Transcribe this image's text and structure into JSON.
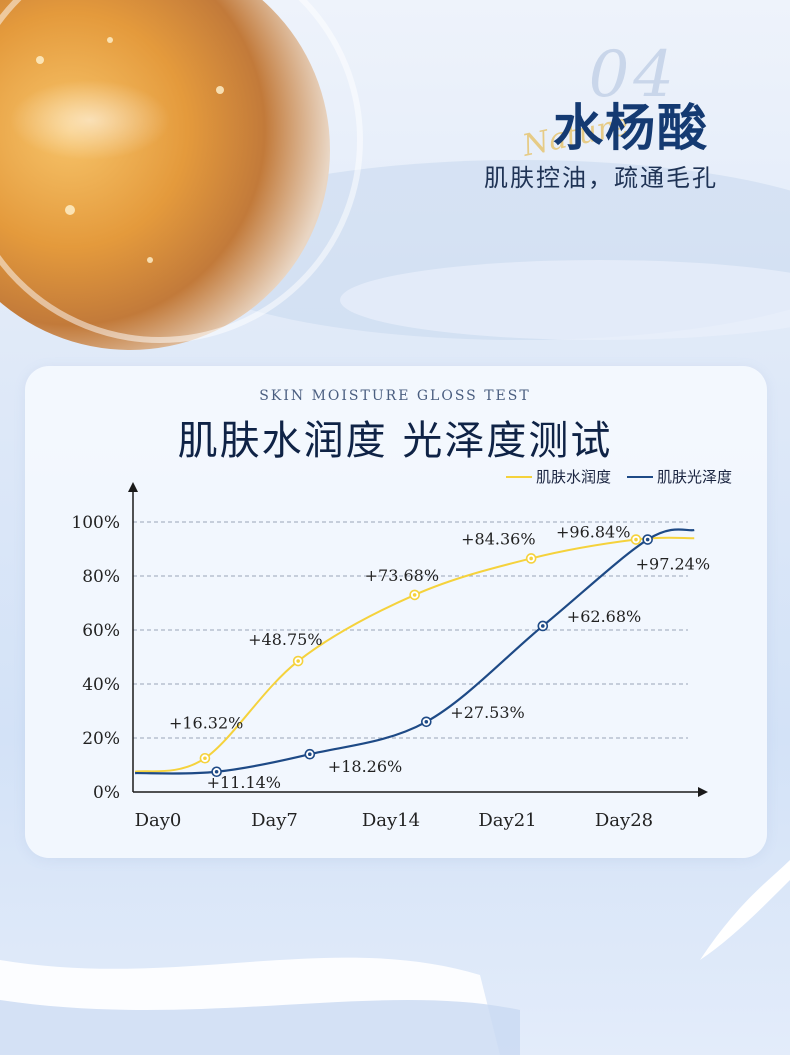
{
  "header": {
    "number": "04",
    "script": "Nature",
    "title": "水杨酸",
    "subtitle": "肌肤控油，疏通毛孔"
  },
  "colors": {
    "moisture": "#f5d23c",
    "gloss": "#1e4a86",
    "grid": "#9aa6b8",
    "axis": "#1a1a1a"
  },
  "chart_data": {
    "type": "line",
    "caption": "SKIN MOISTURE GLOSS TEST",
    "title": "肌肤水润度  光泽度测试",
    "x_categories": [
      "Day0",
      "Day7",
      "Day14",
      "Day21",
      "Day28"
    ],
    "y_ticks": [
      "100%",
      "80%",
      "60%",
      "40%",
      "20%",
      "0%"
    ],
    "ylim": [
      0,
      100
    ],
    "grid": true,
    "legend_position": "top-right",
    "series": [
      {
        "name": "肌肤水润度",
        "key": "moisture",
        "line_points": [
          [
            -0.3,
            7.5
          ],
          [
            0.3,
            12.5
          ],
          [
            1.1,
            48.5
          ],
          [
            2.1,
            73
          ],
          [
            3.1,
            86.5
          ],
          [
            4.0,
            93.5
          ],
          [
            4.5,
            94.0
          ]
        ],
        "markers": [
          {
            "x": 0.3,
            "y": 12.5,
            "label": "+16.32%"
          },
          {
            "x": 1.1,
            "y": 48.5,
            "label": "+48.75%"
          },
          {
            "x": 2.1,
            "y": 73,
            "label": "+73.68%"
          },
          {
            "x": 3.1,
            "y": 86.5,
            "label": "+84.36%"
          },
          {
            "x": 4.0,
            "y": 93.5,
            "label": "+96.84%"
          }
        ]
      },
      {
        "name": "肌肤光泽度",
        "key": "gloss",
        "line_points": [
          [
            -0.3,
            7.0
          ],
          [
            0.4,
            7.5
          ],
          [
            1.2,
            14.0
          ],
          [
            2.2,
            26.0
          ],
          [
            3.2,
            61.5
          ],
          [
            4.1,
            93.5
          ],
          [
            4.5,
            97.0
          ]
        ],
        "markers": [
          {
            "x": 0.4,
            "y": 7.5,
            "label": "+11.14%"
          },
          {
            "x": 1.2,
            "y": 14.0,
            "label": "+18.26%"
          },
          {
            "x": 2.2,
            "y": 26.0,
            "label": "+27.53%"
          },
          {
            "x": 3.2,
            "y": 61.5,
            "label": "+62.68%"
          },
          {
            "x": 4.1,
            "y": 93.5,
            "label": "+97.24%"
          }
        ]
      }
    ]
  }
}
